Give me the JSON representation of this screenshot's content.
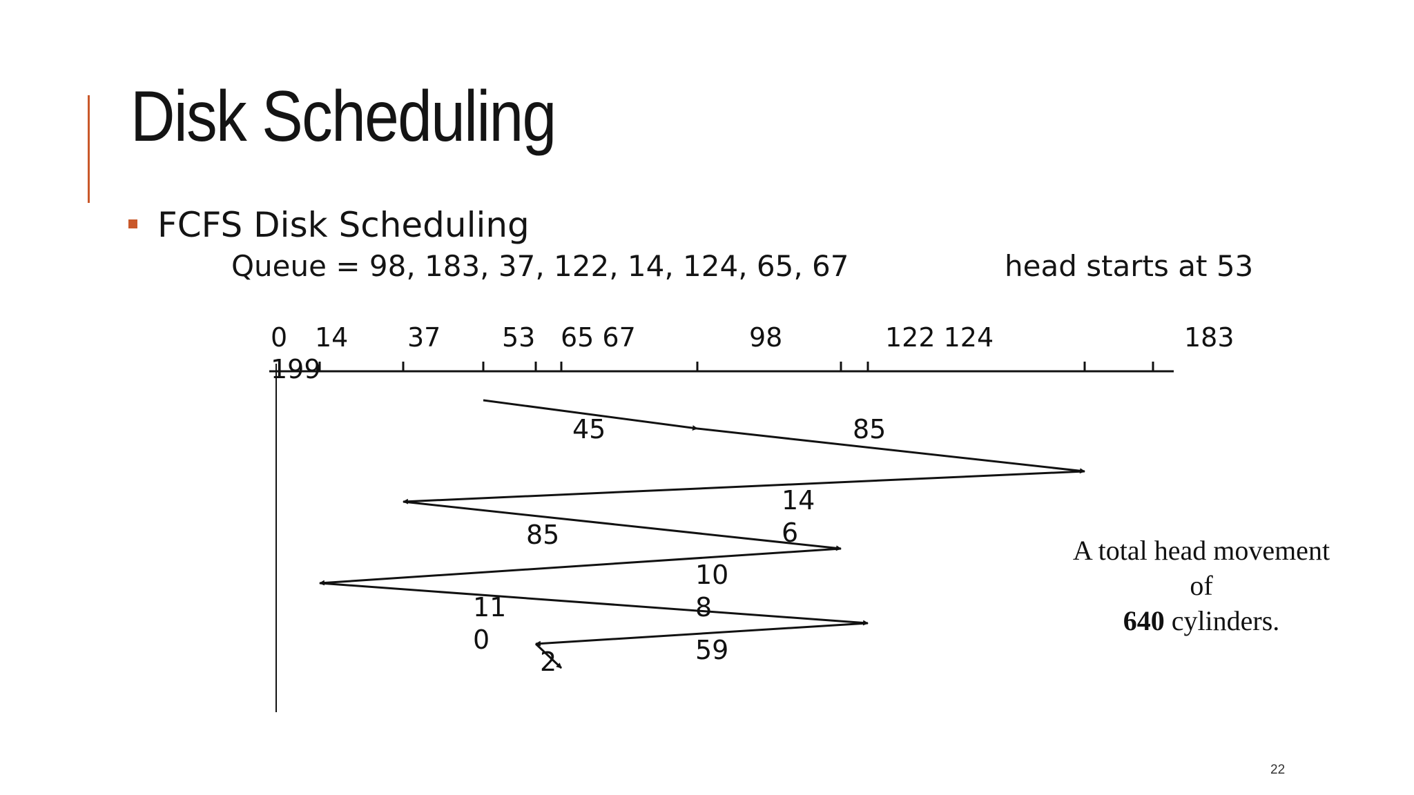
{
  "slide": {
    "title": "Disk Scheduling",
    "bullet": "FCFS Disk Scheduling",
    "queue_line": "Queue = 98, 183, 37, 122, 14, 124, 65, 67",
    "head_line": "head starts at 53",
    "summary": {
      "line1": "A total head movement",
      "line2": "of",
      "value": "640",
      "unit": " cylinders."
    },
    "page_number": "22",
    "accent_color": "#c9582a"
  },
  "diagram": {
    "axis_labels": [
      "0",
      "14",
      "37",
      "53",
      "65 67",
      "98",
      "122 124",
      "183",
      "199"
    ],
    "path": [
      53,
      98,
      183,
      37,
      122,
      14,
      124,
      65,
      67
    ],
    "distance_labels": [
      {
        "lines": [
          "45"
        ]
      },
      {
        "lines": [
          "85"
        ]
      },
      {
        "lines": [
          "14",
          "6"
        ]
      },
      {
        "lines": [
          "85"
        ]
      },
      {
        "lines": [
          "10",
          "8"
        ]
      },
      {
        "lines": [
          "11",
          "0"
        ]
      },
      {
        "lines": [
          "59"
        ]
      },
      {
        "lines": [
          "2"
        ]
      }
    ]
  }
}
